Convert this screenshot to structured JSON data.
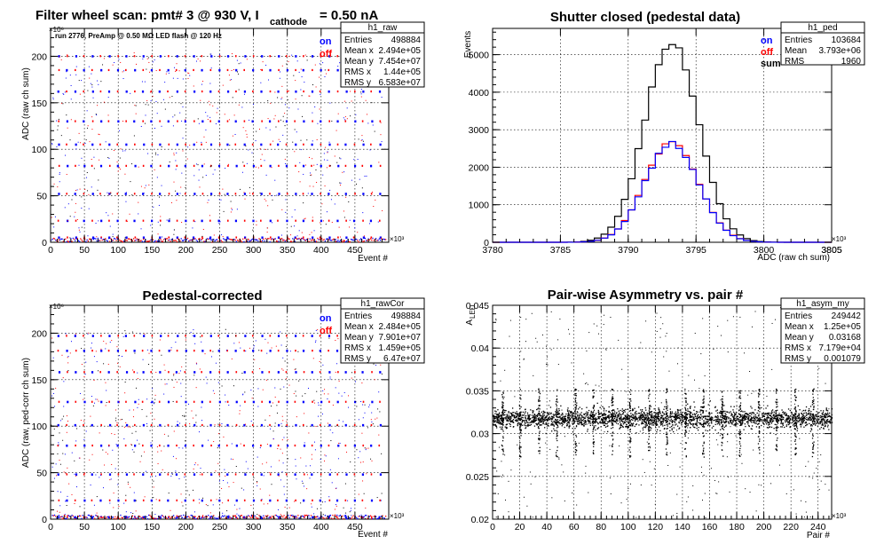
{
  "chart_data": [
    {
      "type": "scatter",
      "title": "Filter wheel scan: pmt#  3 @   930 V, I",
      "title_sub": "cathode",
      "title_tail": "= 0.50 nA",
      "annotation": "run 2776, PreAmp @ 0.50 MΩ  LED flash @  120 Hz",
      "xlabel": "Event #",
      "ylabel": "ADC (raw ch sum)",
      "x_multiplier": "×10³",
      "y_multiplier": "×10⁶",
      "xlim": [
        0,
        500
      ],
      "ylim": [
        0,
        230
      ],
      "x_ticks": [
        0,
        50,
        100,
        150,
        200,
        250,
        300,
        350,
        400,
        450
      ],
      "y_ticks": [
        0,
        50,
        100,
        150,
        200
      ],
      "grid": true,
      "legend_position": "top-right",
      "series": [
        {
          "name": "on",
          "color": "#0000ff"
        },
        {
          "name": "off",
          "color": "#ff0000"
        }
      ],
      "level_values": [
        5,
        23,
        52,
        82,
        105,
        130,
        162,
        185,
        200
      ],
      "stats": {
        "name": "h1_raw",
        "rows": [
          [
            "Entries",
            "498884"
          ],
          [
            "Mean x",
            "2.494e+05"
          ],
          [
            "Mean y",
            "7.454e+07"
          ],
          [
            "RMS x",
            "1.44e+05"
          ],
          [
            "RMS y",
            "6.583e+07"
          ]
        ]
      }
    },
    {
      "type": "line",
      "title": "Shutter closed (pedestal data)",
      "xlabel": "ADC (raw ch sum)",
      "ylabel": "Events",
      "x_multiplier": "×10³",
      "xlim": [
        3780,
        3805
      ],
      "ylim": [
        0,
        5700
      ],
      "x_ticks": [
        3780,
        3785,
        3790,
        3795,
        3800,
        3805
      ],
      "y_ticks": [
        0,
        1000,
        2000,
        3000,
        4000,
        5000
      ],
      "grid": true,
      "legend_position": "top-right",
      "series": [
        {
          "name": "on",
          "color": "#0000ff",
          "peak": 2650
        },
        {
          "name": "off",
          "color": "#ff0000",
          "peak": 2700
        },
        {
          "name": "sum",
          "color": "#000000",
          "peak": 5350
        }
      ],
      "peak_x": 3793.2,
      "sigma": 1.96,
      "stats": {
        "name": "h1_ped",
        "rows": [
          [
            "Entries",
            "103684"
          ],
          [
            "Mean",
            "3.793e+06"
          ],
          [
            "RMS",
            "1960"
          ]
        ]
      }
    },
    {
      "type": "scatter",
      "title": "Pedestal-corrected",
      "xlabel": "Event #",
      "ylabel": "ADC (raw, ped-corr ch sum)",
      "x_multiplier": "×10³",
      "y_multiplier": "×10⁶",
      "xlim": [
        0,
        500
      ],
      "ylim": [
        0,
        230
      ],
      "x_ticks": [
        0,
        50,
        100,
        150,
        200,
        250,
        300,
        350,
        400,
        450
      ],
      "y_ticks": [
        0,
        50,
        100,
        150,
        200
      ],
      "grid": true,
      "legend_position": "top-right",
      "series": [
        {
          "name": "on",
          "color": "#0000ff"
        },
        {
          "name": "off",
          "color": "#ff0000"
        }
      ],
      "level_values": [
        2,
        20,
        48,
        79,
        101,
        126,
        158,
        181,
        197
      ],
      "stats": {
        "name": "h1_rawCor",
        "rows": [
          [
            "Entries",
            "498884"
          ],
          [
            "Mean x",
            "2.484e+05"
          ],
          [
            "Mean y",
            "7.901e+07"
          ],
          [
            "RMS x",
            "1.459e+05"
          ],
          [
            "RMS y",
            "6.47e+07"
          ]
        ]
      }
    },
    {
      "type": "scatter",
      "title": "Pair-wise Asymmetry vs. pair #",
      "xlabel": "Pair #",
      "ylabel": "A",
      "ylabel_sub": "LED",
      "x_multiplier": "×10³",
      "xlim": [
        0,
        250
      ],
      "ylim": [
        0.02,
        0.045
      ],
      "x_ticks": [
        0,
        20,
        40,
        60,
        80,
        100,
        120,
        140,
        160,
        180,
        200,
        220,
        240
      ],
      "y_ticks": [
        0.02,
        0.025,
        0.03,
        0.035,
        0.04,
        0.045
      ],
      "y_tick_labels": [
        "0.02",
        "0.025",
        "0.03",
        "0.035",
        "0.04",
        "0.045"
      ],
      "grid": true,
      "band_center": 0.0318,
      "spike_x": [
        7,
        20,
        34,
        47,
        61,
        74,
        88,
        101,
        115,
        128,
        142,
        155,
        169,
        182,
        196,
        209,
        223,
        236
      ],
      "stats": {
        "name": "h1_asym_my",
        "rows": [
          [
            "Entries",
            "249442"
          ],
          [
            "Mean x",
            "1.25e+05"
          ],
          [
            "Mean y",
            "0.03168"
          ],
          [
            "RMS x",
            "7.179e+04"
          ],
          [
            "RMS y",
            "0.001079"
          ]
        ]
      }
    }
  ]
}
